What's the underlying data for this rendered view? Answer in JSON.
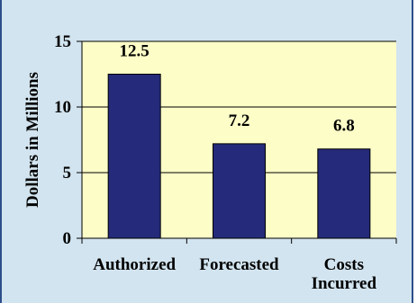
{
  "chart_data": {
    "type": "bar",
    "title": "",
    "xlabel": "",
    "ylabel": "Dollars in Millions",
    "categories": [
      [
        "Authorized"
      ],
      [
        "Forecasted"
      ],
      [
        "Costs",
        "Incurred"
      ]
    ],
    "values": [
      12.5,
      7.2,
      6.8
    ],
    "value_labels": [
      "12.5",
      "7.2",
      "6.8"
    ],
    "ylim": [
      0,
      15
    ],
    "yticks": [
      0,
      5,
      10,
      15
    ],
    "ytick_labels": [
      "0",
      "5",
      "10",
      "15"
    ],
    "grid": true,
    "legend": "none"
  },
  "colors": {
    "frame_background": "#d2e4ef",
    "frame_border": "#2d4f8a",
    "plot_background": "#fdfdc8",
    "bar_fill": "#252b7a",
    "bar_stroke": "#000000",
    "gridline": "#000000"
  }
}
